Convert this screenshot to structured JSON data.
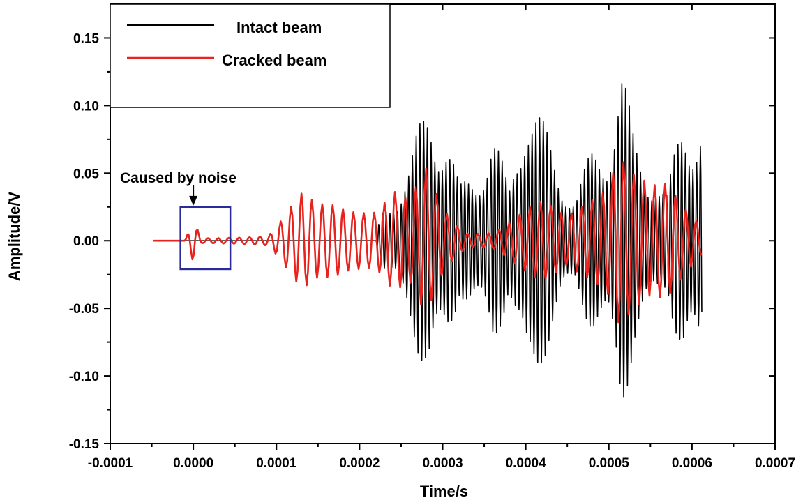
{
  "chart_data": {
    "type": "line",
    "xlabel": "Time/s",
    "ylabel": "Amplitude/V",
    "xlim": [
      -0.0001,
      0.0007
    ],
    "ylim": [
      -0.15,
      0.175
    ],
    "x_ticks": [
      -0.0001,
      0.0,
      0.0001,
      0.0002,
      0.0003,
      0.0004,
      0.0005,
      0.0006,
      0.0007
    ],
    "x_tick_labels": [
      "-0.0001",
      "0.0000",
      "0.0001",
      "0.0002",
      "0.0003",
      "0.0004",
      "0.0005",
      "0.0006",
      "0.0007"
    ],
    "y_ticks": [
      -0.15,
      -0.1,
      -0.05,
      0.0,
      0.05,
      0.1,
      0.15
    ],
    "y_tick_labels": [
      "-0.15",
      "-0.10",
      "-0.05",
      "0.00",
      "0.05",
      "0.10",
      "0.15"
    ],
    "grid": false,
    "legend_position": "top-left",
    "series": [
      {
        "name": "Intact beam",
        "color": "#000000",
        "x_range": [
          -4.8e-05,
          0.000612
        ],
        "envelope": {
          "t": [
            -4.8e-05,
            0.00022,
            0.000225,
            0.00026,
            0.000285,
            0.000305,
            0.00032,
            0.00034,
            0.00036,
            0.00038,
            0.0004,
            0.00042,
            0.00044,
            0.00046,
            0.00048,
            0.0005,
            0.000515,
            0.00053,
            0.00055,
            0.00057,
            0.00059,
            0.000612
          ],
          "amp": [
            0.0,
            0.0,
            0.02,
            0.06,
            0.115,
            0.09,
            0.04,
            0.06,
            0.085,
            0.04,
            0.13,
            0.09,
            0.06,
            0.035,
            0.07,
            0.09,
            0.135,
            0.08,
            0.06,
            0.035,
            0.105,
            0.105
          ]
        },
        "period": 4.5e-06
      },
      {
        "name": "Cracked beam",
        "color": "#e8231e",
        "x_range": [
          -4.8e-05,
          0.000612
        ],
        "envelope": {
          "t": [
            -4.8e-05,
            -1e-05,
            0.0,
            1e-05,
            3e-05,
            6e-05,
            9e-05,
            0.00011,
            0.00013,
            0.00015,
            0.000175,
            0.0002,
            0.00022,
            0.00024,
            0.00026,
            0.00028,
            0.0003,
            0.00033,
            0.00036,
            0.00039,
            0.00042,
            0.00045,
            0.00048,
            0.0005,
            0.00051,
            0.00053,
            0.00055,
            0.00057,
            0.0006,
            0.000612
          ],
          "amp": [
            0.0,
            0.0,
            0.016,
            0.002,
            0.003,
            0.005,
            0.005,
            0.02,
            0.035,
            0.03,
            0.04,
            0.042,
            0.035,
            0.045,
            0.03,
            0.055,
            0.03,
            0.01,
            0.01,
            0.02,
            0.03,
            0.025,
            0.06,
            0.07,
            0.09,
            0.055,
            0.04,
            0.045,
            0.03,
            0.02
          ]
        },
        "period": 1.25e-05
      }
    ],
    "annotations": [
      {
        "text": "Caused by noise",
        "box": {
          "x0": -1.55e-05,
          "x1": 4.45e-05,
          "y0": -0.021,
          "y1": 0.025
        },
        "arrow_to": {
          "x": 0.0,
          "y": 0.027
        }
      }
    ]
  }
}
